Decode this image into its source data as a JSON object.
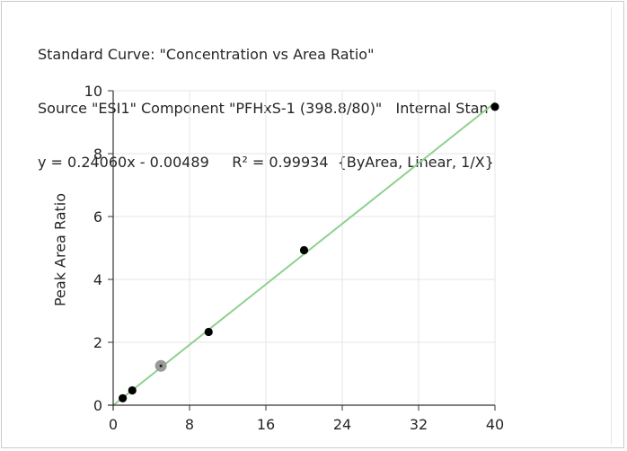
{
  "header": {
    "line1": "Standard Curve: \"Concentration vs Area Ratio\"",
    "line2": "Source \"ESI1\" Component \"PFHxS-1 (398.8/80)\"   Internal Stan",
    "line3": "y = 0.24060x - 0.00489     R² = 0.99934  {ByArea, Linear, 1/X}"
  },
  "chart_data": {
    "type": "scatter",
    "ylabel": "Peak Area Ratio",
    "xlim": [
      0,
      40
    ],
    "ylim": [
      0,
      10
    ],
    "xticks": [
      0,
      8,
      16,
      24,
      32,
      40
    ],
    "yticks": [
      0,
      2,
      4,
      6,
      8,
      10
    ],
    "grid": true,
    "points": [
      {
        "x": 1,
        "y": 0.22
      },
      {
        "x": 2,
        "y": 0.47
      },
      {
        "x": 10,
        "y": 2.33
      },
      {
        "x": 20,
        "y": 4.93
      },
      {
        "x": 40,
        "y": 9.49
      }
    ],
    "highlighted_point": {
      "x": 5,
      "y": 1.25
    },
    "fit": {
      "slope": 0.2406,
      "intercept": -0.00489,
      "color": "#8fd08f"
    },
    "colors": {
      "point": "#000000",
      "highlight": "#9a9a9a",
      "grid": "#e6e6e6",
      "axis": "#333333"
    }
  }
}
